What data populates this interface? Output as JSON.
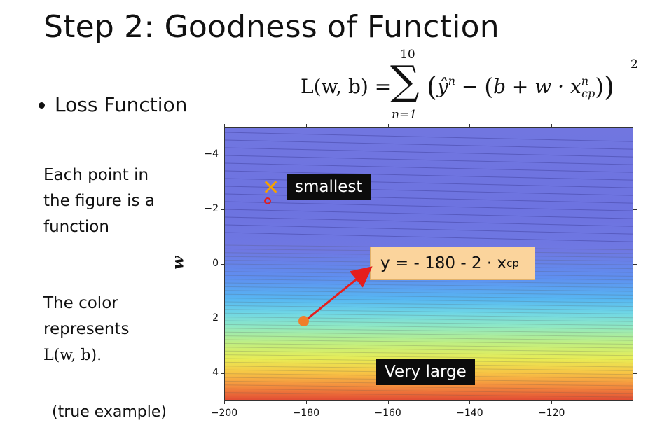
{
  "slide": {
    "title": "Step 2: Goodness of Function",
    "bullet": "Loss Function"
  },
  "formula": {
    "lhs": "L(w, b) =",
    "sum_upper": "10",
    "sum_lower": "n=1",
    "body_yhat": "ŷ",
    "body_sup_n": "n",
    "body_minus": " − ",
    "body_b_w": "b + w · x",
    "body_sub": "cp",
    "exponent": "2"
  },
  "side_text": {
    "block1": [
      "Each point in",
      "the figure is a",
      "function"
    ],
    "block2": [
      "The color",
      "represents"
    ],
    "block2_math": "L(w, b)."
  },
  "note": "(true example)",
  "plot": {
    "ylabel": "w",
    "y_ticks": [
      "4",
      "2",
      "0",
      "−2",
      "−4"
    ],
    "x_ticks": [
      "−200",
      "−180",
      "−160",
      "−140",
      "−120"
    ],
    "label_smallest": "smallest",
    "label_very_large": "Very large",
    "equation_main": "y = - 180 - 2 · x",
    "equation_sub": "cp",
    "marker_color": "#f5a100",
    "point_color": "#f07e2a",
    "arrow_color": "#e51e1e"
  },
  "chart_data": {
    "type": "heatmap",
    "xlabel": "",
    "ylabel": "w",
    "xlim": [
      -200,
      -100
    ],
    "ylim": [
      -5,
      5
    ],
    "x_ticks": [
      -200,
      -180,
      -160,
      -140,
      -120
    ],
    "y_ticks": [
      -4,
      -2,
      0,
      2,
      4
    ],
    "annotations": [
      {
        "text": "smallest",
        "x": -189,
        "y": 2.6
      },
      {
        "text": "Very large",
        "x": -162,
        "y": -4
      },
      {
        "text": "y = - 180 - 2 · x_cp",
        "x": -180,
        "y": -2
      }
    ],
    "colormap": [
      "#7176e0",
      "#5f8ff0",
      "#6fd6e6",
      "#bfef83",
      "#e8ec55",
      "#f48d3e",
      "#e24e34"
    ]
  }
}
